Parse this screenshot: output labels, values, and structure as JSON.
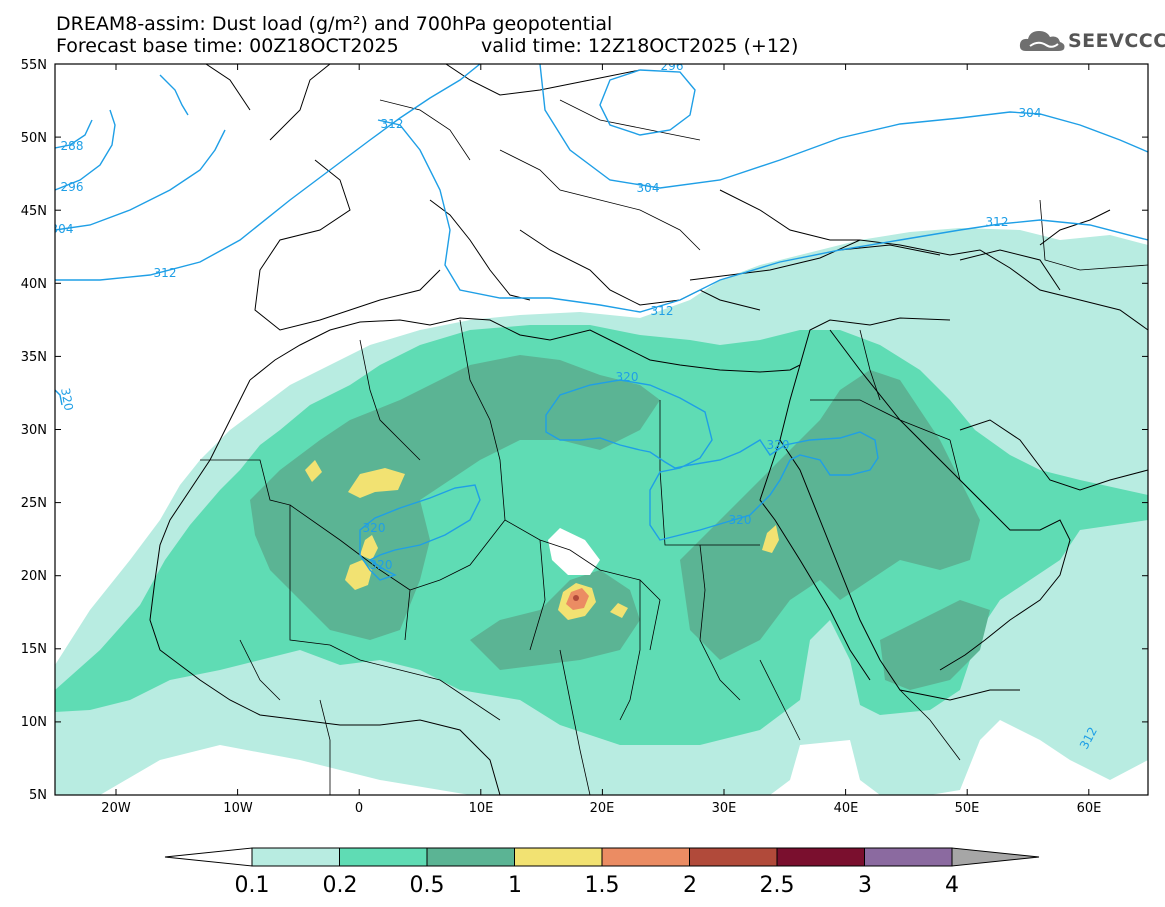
{
  "title_line1": "DREAM8-assim: Dust load (g/m²) and 700hPa geopotential",
  "base_time": "Forecast base time: 00Z18OCT2025",
  "valid_time": "valid time: 12Z18OCT2025 (+12)",
  "logo_text": "SEEVCCC",
  "logo_icon": "cloud-icon",
  "lat_labels": [
    "55N",
    "50N",
    "45N",
    "40N",
    "35N",
    "30N",
    "25N",
    "20N",
    "15N",
    "10N",
    "5N"
  ],
  "lon_labels": [
    "20W",
    "10W",
    "0",
    "10E",
    "20E",
    "30E",
    "40E",
    "50E",
    "60E"
  ],
  "contour_labels": [
    "296",
    "312",
    "304",
    "304",
    "312",
    "312",
    "320",
    "320",
    "320",
    "320",
    "320",
    "312",
    "288",
    "296",
    "304",
    "312",
    "320"
  ],
  "colorbar": {
    "ticks": [
      "0.1",
      "0.2",
      "0.5",
      "1",
      "1.5",
      "2",
      "2.5",
      "3",
      "4"
    ],
    "colors": [
      "#b8ece1",
      "#5fdcb4",
      "#5bb494",
      "#f2e272",
      "#eb8c63",
      "#b14a3a",
      "#7a0f2e",
      "#8b6aa0"
    ],
    "under_color": "#ffffff",
    "over_color": "#a6a6a6"
  },
  "dust_colors": {
    "c1": "#b8ece1",
    "c2": "#5fdcb4",
    "c3": "#5bb494",
    "c4": "#f2e272",
    "c5": "#eb8c63",
    "c6": "#b14a3a"
  },
  "contour_color": "#1f9fe6"
}
